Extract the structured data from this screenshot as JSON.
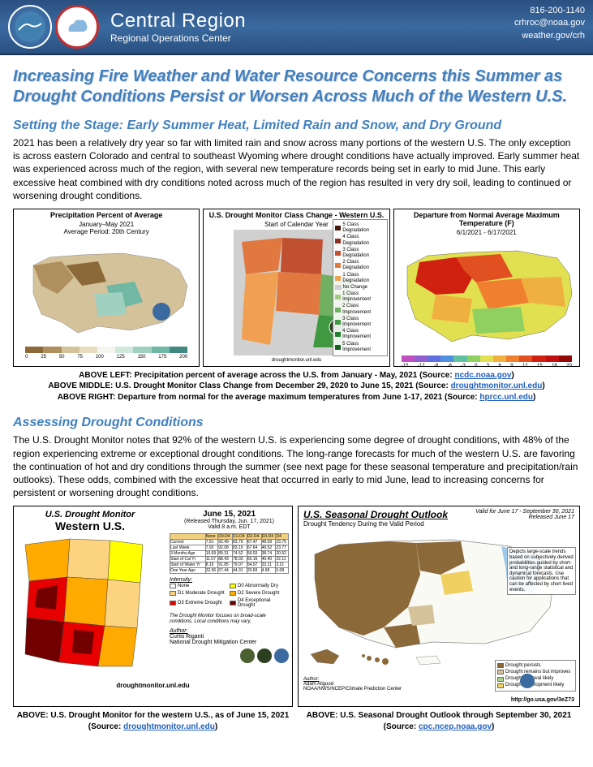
{
  "header": {
    "title_main": "Central Region",
    "title_sub": "Regional Operations Center",
    "phone": "816-200-1140",
    "email": "crhroc@noaa.gov",
    "web": "weather.gov/crh"
  },
  "main_title": "Increasing Fire Weather and Water Resource Concerns this Summer as Drought Conditions Persist or Worsen Across Much of the Western U.S.",
  "section1": {
    "title": "Setting the Stage:  Early Summer Heat, Limited Rain and Snow, and Dry Ground",
    "body": "2021 has been a relatively dry year so far with limited rain and snow across many portions of the western U.S. The only exception is across eastern Colorado and central to southeast Wyoming where drought conditions have actually improved. Early summer heat was experienced across much of the region, with several new temperature records being set in early to mid June. This early excessive heat combined with dry conditions noted across much of the region has resulted in very dry soil, leading to continued or worsening drought conditions."
  },
  "maps1": {
    "left": {
      "title": "Precipitation Percent of Average",
      "sub1": "January–May 2021",
      "sub2": "Average Period: 20th Century",
      "scale": [
        "0",
        "25",
        "50",
        "75",
        "100",
        "125",
        "150",
        "175",
        "200"
      ],
      "colors": [
        "#8b6939",
        "#b08f5f",
        "#d4c29a",
        "#e8dcc0",
        "#f5f5f0",
        "#d0e8dc",
        "#a0d0c0",
        "#70b8a4",
        "#408880"
      ]
    },
    "middle": {
      "title": "U.S. Drought Monitor Class Change - Western U.S.",
      "sub": "Start of Calendar Year",
      "legend": [
        "5 Class Degradation",
        "4 Class Degradation",
        "3 Class Degradation",
        "2 Class Degradation",
        "1 Class Degradation",
        "No Change",
        "1 Class Improvement",
        "2 Class Improvement",
        "3 Class Improvement",
        "4 Class Improvement",
        "5 Class Improvement"
      ],
      "legend_colors": [
        "#4a1810",
        "#8b3020",
        "#c05030",
        "#e07840",
        "#f0a050",
        "#d0d0d0",
        "#a0c880",
        "#70b060",
        "#409840",
        "#208030",
        "#106020"
      ]
    },
    "right": {
      "title": "Departure from Normal Average Maximum Temperature (F)",
      "sub": "6/1/2021 - 6/17/2021",
      "scale": [
        "-15",
        "-12",
        "-9",
        "-6",
        "-3",
        "0",
        "3",
        "6",
        "9",
        "12",
        "15",
        "18",
        "20"
      ],
      "colors": [
        "#c050c0",
        "#9060d0",
        "#6070e0",
        "#5090e0",
        "#60c0a0",
        "#90d060",
        "#e0e050",
        "#f0b040",
        "#f08030",
        "#e05020",
        "#d02010",
        "#c01010",
        "#900808"
      ]
    }
  },
  "captions1": {
    "left_pre": "ABOVE LEFT: Precipitation percent of average across the U.S. from January - May, 2021 (Source: ",
    "left_link": "ncdc.noaa.gov",
    "left_post": ")",
    "mid_pre": "ABOVE MIDDLE: U.S. Drought Monitor Class Change from December 29, 2020 to June 15, 2021  (Source: ",
    "mid_link": "droughtmonitor.unl.edu",
    "mid_post": ")",
    "right_pre": "ABOVE RIGHT:  Departure from normal for the average maximum temperatures from June 1-17, 2021  (Source: ",
    "right_link": "hprcc.unl.edu",
    "right_post": ")"
  },
  "section2": {
    "title": "Assessing Drought Conditions",
    "body": "The U.S. Drought Monitor notes that 92% of the western U.S. is experiencing some degree of drought conditions, with 48% of the region experiencing extreme or exceptional drought conditions. The long-range forecasts for much of the western U.S. are favoring the continuation of hot and dry conditions through the summer (see next page for these seasonal temperature and precipitation/rain outlooks). These odds, combined with the excessive heat that occurred in early to mid June, lead to increasing concerns for persistent or worsening drought conditions."
  },
  "maps2": {
    "left": {
      "title1": "U.S. Drought Monitor",
      "title2": "Western U.S.",
      "date": "June 15, 2021",
      "released": "(Released Thursday, Jun. 17, 2021)",
      "valid": "Valid 8 a.m. EDT",
      "intensity_title": "Intensity:",
      "intensity": [
        "None",
        "D0 Abnormally Dry",
        "D1 Moderate Drought",
        "D2 Severe Drought",
        "D3 Extreme Drought",
        "D4 Exceptional Drought"
      ],
      "intensity_colors": [
        "#ffffff",
        "#ffff00",
        "#fcd37f",
        "#ffaa00",
        "#e60000",
        "#730000"
      ],
      "author_label": "Author:",
      "author": "Curtis Riganti",
      "org": "National Drought Mitigation Center",
      "url": "droughtmonitor.unl.edu"
    },
    "right": {
      "title": "U.S. Seasonal Drought Outlook",
      "sub": "Drought Tendency During the Valid Period",
      "valid": "Valid for June 17 - September 30, 2021",
      "released": "Released June 17",
      "legend": [
        "Drought persists",
        "Drought remains but improves",
        "Drought removal likely",
        "Drought development likely"
      ],
      "legend_colors": [
        "#8b6939",
        "#d4c29a",
        "#b0d090",
        "#f0d060"
      ],
      "author_label": "Author:",
      "author": "Adam Allgood",
      "org": "NOAA/NWS/NCEP/Climate Prediction Center",
      "url": "http://go.usa.gov/3eZ73"
    }
  },
  "captions2": {
    "left_pre": "ABOVE: U.S. Drought Monitor for the western U.S., as of June 15, 2021 (Source: ",
    "left_link": "droughtmonitor.unl.edu",
    "left_post": ")",
    "right_pre": "ABOVE: U.S. Seasonal Drought Outlook through September 30, 2021 (Source: ",
    "right_link": "cpc.ncep.noaa.gov",
    "right_post": ")"
  }
}
